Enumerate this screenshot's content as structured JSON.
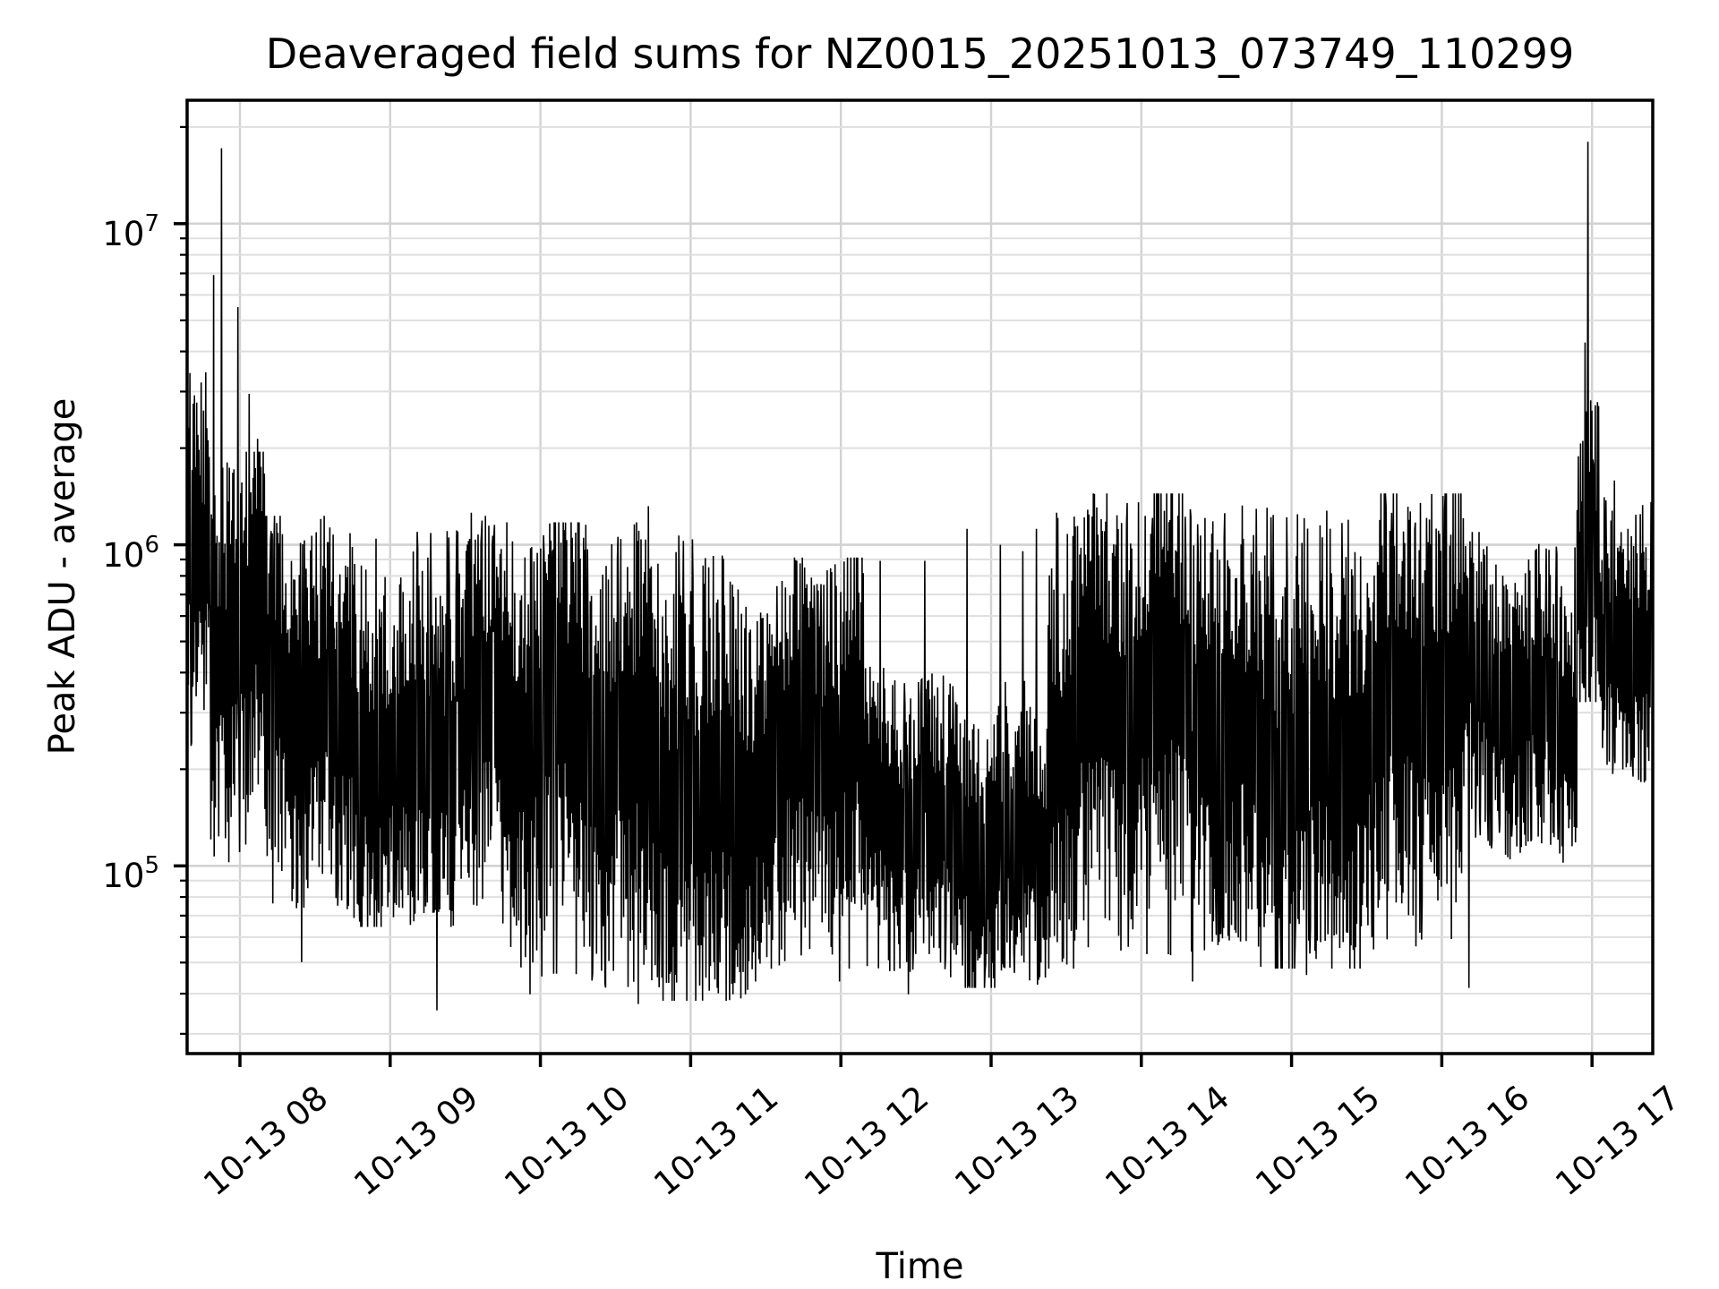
{
  "title": "Deaveraged field sums for NZ0015_20251013_073749_110299",
  "chart_data": {
    "type": "line",
    "title": "Deaveraged field sums for NZ0015_20251013_073749_110299",
    "xlabel": "Time",
    "ylabel": "Peak ADU - average",
    "x_scale": "time",
    "y_scale": "log",
    "grid": "both",
    "legend": "none",
    "line_color": "#000000",
    "background_color": "#ffffff",
    "grid_color_minor": "#dfdfdf",
    "grid_color_major": "#d2d2d2",
    "spine_color": "#000000",
    "text_color": "#000000",
    "ylim": [
      26000,
      24200000
    ],
    "ylim_log": [
      4.4155,
      7.3843
    ],
    "xlim_hours": [
      7.6484,
      17.4042
    ],
    "y_major_ticks": [
      {
        "log": 7,
        "base": "10",
        "exp": "7",
        "value": 10000000
      },
      {
        "log": 6,
        "base": "10",
        "exp": "6",
        "value": 1000000
      },
      {
        "log": 5,
        "base": "10",
        "exp": "5",
        "value": 100000
      }
    ],
    "x_ticks": [
      {
        "hour": 8,
        "label": "10-13 08"
      },
      {
        "hour": 9,
        "label": "10-13 09"
      },
      {
        "hour": 10,
        "label": "10-13 10"
      },
      {
        "hour": 11,
        "label": "10-13 11"
      },
      {
        "hour": 12,
        "label": "10-13 12"
      },
      {
        "hour": 13,
        "label": "10-13 13"
      },
      {
        "hour": 14,
        "label": "10-13 14"
      },
      {
        "hour": 15,
        "label": "10-13 15"
      },
      {
        "hour": 16,
        "label": "10-13 16"
      },
      {
        "hour": 17,
        "label": "10-13 17"
      }
    ],
    "n_points": 2600,
    "seed": 20251013,
    "envelope_segments": [
      {
        "t0": 7.6484,
        "t1": 7.8,
        "lo": 5.35,
        "hi": 6.52
      },
      {
        "t0": 7.8,
        "t1": 8.17,
        "lo": 5.0,
        "hi": 6.25
      },
      {
        "t0": 8.17,
        "t1": 9.75,
        "lo": 4.85,
        "hi": 6.05
      },
      {
        "t0": 9.75,
        "t1": 11.4,
        "lo": 4.62,
        "hi": 6.03
      },
      {
        "t0": 11.4,
        "t1": 12.15,
        "lo": 4.68,
        "hi": 5.92
      },
      {
        "t0": 12.15,
        "t1": 13.38,
        "lo": 4.66,
        "hi": 5.58
      },
      {
        "t0": 13.38,
        "t1": 16.15,
        "lo": 4.72,
        "hi": 6.12
      },
      {
        "t0": 16.15,
        "t1": 16.9,
        "lo": 5.05,
        "hi": 6.0
      },
      {
        "t0": 16.9,
        "t1": 17.05,
        "lo": 5.55,
        "hi": 6.55
      },
      {
        "t0": 17.05,
        "t1": 17.4042,
        "lo": 5.3,
        "hi": 6.15
      }
    ],
    "events": [
      {
        "t": 7.825,
        "log": 6.84
      },
      {
        "t": 7.878,
        "log": 7.235
      },
      {
        "t": 7.988,
        "log": 6.74
      },
      {
        "t": 8.062,
        "log": 6.47
      },
      {
        "t": 8.118,
        "log": 6.33
      },
      {
        "t": 9.54,
        "log": 6.1
      },
      {
        "t": 10.72,
        "log": 6.12
      },
      {
        "t": 12.26,
        "log": 5.95
      },
      {
        "t": 12.56,
        "log": 5.95
      },
      {
        "t": 12.84,
        "log": 6.05
      },
      {
        "t": 13.06,
        "log": 6.0
      },
      {
        "t": 13.21,
        "log": 5.98
      },
      {
        "t": 13.3,
        "log": 6.05
      },
      {
        "t": 16.952,
        "log": 6.63
      },
      {
        "t": 16.974,
        "log": 7.255
      },
      {
        "t": 16.992,
        "log": 6.45
      },
      {
        "t": 17.01,
        "log": 6.25
      },
      {
        "t": 17.15,
        "log": 6.2
      },
      {
        "t": 8.41,
        "log": 4.7
      },
      {
        "t": 9.31,
        "log": 4.55
      },
      {
        "t": 9.93,
        "log": 4.6
      },
      {
        "t": 10.65,
        "log": 4.57
      },
      {
        "t": 11.99,
        "log": 4.64
      },
      {
        "t": 12.45,
        "log": 4.6
      },
      {
        "t": 13.55,
        "log": 4.68
      },
      {
        "t": 14.34,
        "log": 4.64
      },
      {
        "t": 15.1,
        "log": 4.66
      },
      {
        "t": 16.18,
        "log": 4.62
      }
    ]
  }
}
